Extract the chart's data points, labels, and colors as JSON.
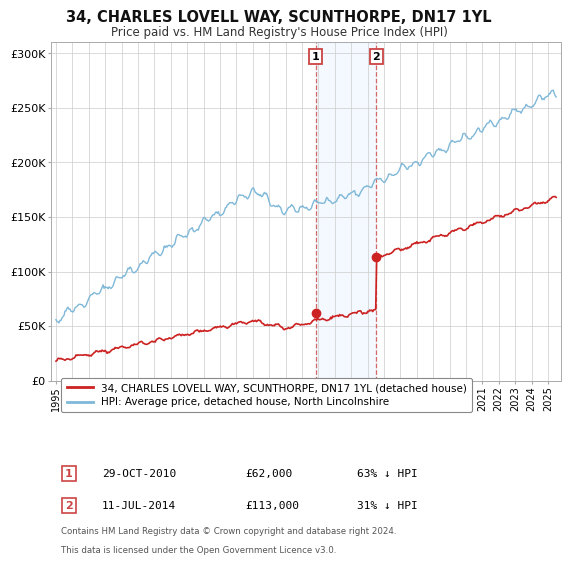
{
  "title": "34, CHARLES LOVELL WAY, SCUNTHORPE, DN17 1YL",
  "subtitle": "Price paid vs. HM Land Registry's House Price Index (HPI)",
  "hpi_color": "#7fb8d8",
  "price_color": "#cc2222",
  "sale1_x": 2010.83,
  "sale2_x": 2014.54,
  "sale1_price": 62000,
  "sale2_price": 113000,
  "sale1_label": "1",
  "sale2_label": "2",
  "sale1_date_str": "29-OCT-2010",
  "sale2_date_str": "11-JUL-2014",
  "sale1_pct": "63% ↓ HPI",
  "sale2_pct": "31% ↓ HPI",
  "legend_label1": "34, CHARLES LOVELL WAY, SCUNTHORPE, DN17 1YL (detached house)",
  "legend_label2": "HPI: Average price, detached house, North Lincolnshire",
  "footer1": "Contains HM Land Registry data © Crown copyright and database right 2024.",
  "footer2": "This data is licensed under the Open Government Licence v3.0.",
  "ylim": [
    0,
    310000
  ],
  "xlim_left": 1994.7,
  "xlim_right": 2025.8,
  "background_color": "#ffffff",
  "shaded_color": "#ddeeff",
  "grid_color": "#cccccc",
  "vline_color": "#cc4444",
  "spine_color": "#aaaaaa"
}
